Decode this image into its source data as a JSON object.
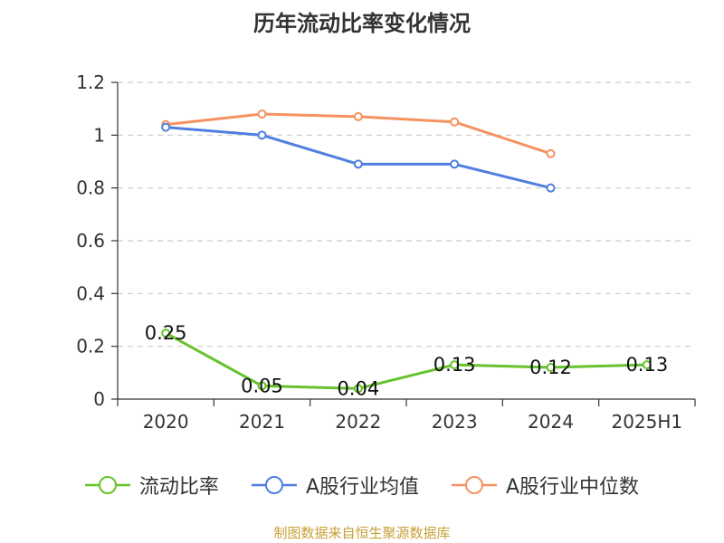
{
  "chart_data": {
    "type": "line",
    "title": "历年流动比率变化情况",
    "categories": [
      "2020",
      "2021",
      "2022",
      "2023",
      "2024",
      "2025H1"
    ],
    "ylim": [
      0,
      1.2
    ],
    "yticks": [
      0,
      0.2,
      0.4,
      0.6,
      0.8,
      1,
      1.2
    ],
    "ytick_labels": [
      "0",
      "0.2",
      "0.4",
      "0.6",
      "0.8",
      "1",
      "1.2"
    ],
    "grid": true,
    "legend_position": "bottom",
    "series": [
      {
        "name": "流动比率",
        "color": "#66c22d",
        "values": [
          0.25,
          0.05,
          0.04,
          0.13,
          0.12,
          0.13
        ],
        "labels": [
          "0.25",
          "0.05",
          "0.04",
          "0.13",
          "0.12",
          "0.13"
        ]
      },
      {
        "name": "A股行业均值",
        "color": "#4f7fe0",
        "values": [
          1.03,
          1.0,
          0.89,
          0.89,
          0.8,
          null
        ]
      },
      {
        "name": "A股行业中位数",
        "color": "#f59260",
        "values": [
          1.04,
          1.08,
          1.07,
          1.05,
          0.93,
          null
        ]
      }
    ]
  },
  "footer": {
    "source": "制图数据来自恒生聚源数据库"
  }
}
